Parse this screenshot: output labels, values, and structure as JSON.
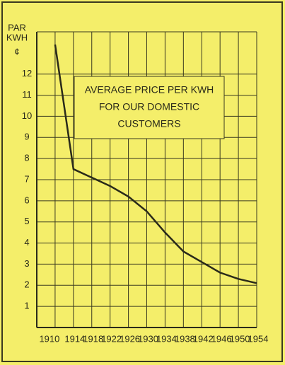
{
  "chart_data": {
    "type": "line",
    "ylabel": [
      "PAR",
      "KWH",
      "¢"
    ],
    "annotation": [
      "AVERAGE PRICE PER KWH",
      "FOR OUR DOMESTIC",
      "CUSTOMERS"
    ],
    "x": [
      1910,
      1914,
      1918,
      1922,
      1926,
      1930,
      1934,
      1938,
      1942,
      1946,
      1950,
      1954
    ],
    "series": [
      {
        "color": "#2a2a1a",
        "values": [
          13.4,
          7.5,
          7.1,
          6.7,
          6.2,
          5.5,
          4.5,
          3.6,
          3.1,
          2.6,
          2.3,
          2.1
        ]
      }
    ],
    "xlim": [
      1906,
      1954
    ],
    "xticks": [
      {
        "value": 1910,
        "label": "1910"
      },
      1914,
      1918,
      1922,
      1926,
      1930,
      1934,
      1938,
      1942,
      1946,
      1950,
      1954
    ],
    "ylim": [
      0,
      14
    ],
    "yticks": [
      1,
      2,
      3,
      4,
      5,
      6,
      7,
      8,
      9,
      10,
      11,
      12
    ],
    "grid": true
  }
}
